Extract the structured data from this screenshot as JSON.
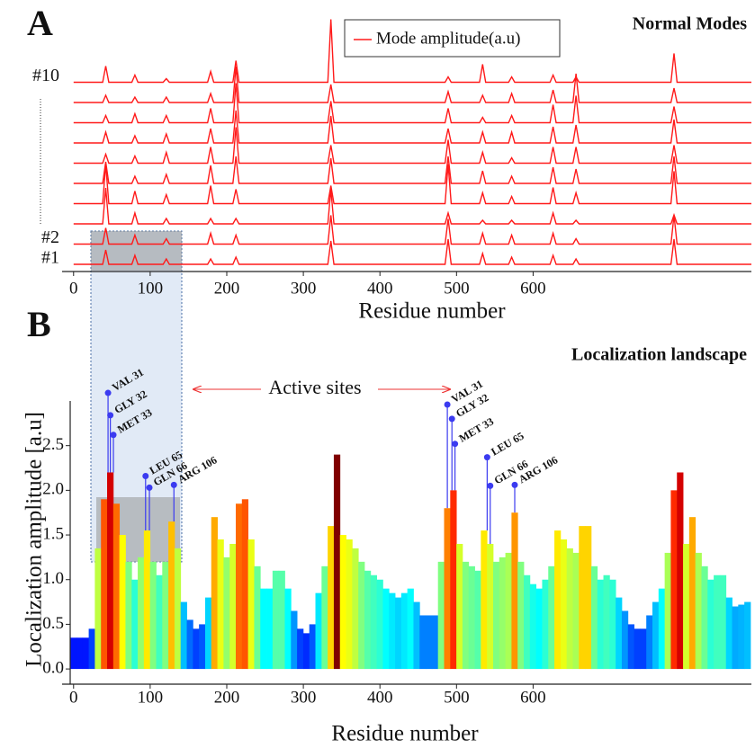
{
  "chart_data": [
    {
      "type": "line",
      "panel_label": "A",
      "title": "Normal Modes",
      "xlabel": "Residue number",
      "legend": "Mode amplitude(a.u)",
      "color": "#ff1a1a",
      "xlim": [
        -15,
        885
      ],
      "xticks": [
        0,
        100,
        200,
        300,
        400,
        500,
        600
      ],
      "x": [
        0,
        38,
        42,
        46,
        76,
        80,
        84,
        117,
        121,
        125,
        175,
        179,
        183,
        208,
        212,
        216,
        332,
        336,
        340,
        485,
        489,
        493,
        530,
        534,
        538,
        568,
        572,
        576,
        622,
        626,
        630,
        652,
        656,
        660,
        780,
        784,
        788,
        885
      ],
      "series": [
        {
          "name": "#1",
          "values": [
            0,
            0,
            0.8,
            0,
            0,
            0.5,
            0,
            0,
            0.3,
            0,
            0,
            0.3,
            0,
            0,
            0.4,
            0,
            0,
            1.3,
            0,
            0,
            1.4,
            0,
            0,
            0.6,
            0,
            0,
            0.4,
            0,
            0,
            0.5,
            0,
            0,
            0.3,
            0,
            0,
            1.4,
            0,
            0
          ]
        },
        {
          "name": "#2",
          "values": [
            0,
            0,
            0.9,
            0,
            0,
            0.5,
            0,
            0,
            0.3,
            0,
            0,
            0.6,
            0,
            0,
            0.5,
            0,
            0,
            1.6,
            0,
            0,
            1.4,
            0,
            0,
            0.6,
            0,
            0,
            0.5,
            0,
            0,
            0.6,
            0,
            0,
            0.3,
            0,
            0,
            1.6,
            0,
            0
          ]
        },
        {
          "values": [
            0,
            0,
            2.0,
            0,
            0,
            0.6,
            0,
            0,
            0.3,
            0,
            0,
            0.3,
            0,
            0,
            0.3,
            0,
            0,
            1.9,
            0,
            0,
            0.6,
            0,
            0,
            0.2,
            0,
            0,
            0.2,
            0,
            0,
            0.6,
            0,
            0,
            0.2,
            0,
            0,
            0.5,
            0,
            0
          ]
        },
        {
          "values": [
            0,
            0,
            2.2,
            0,
            0,
            0.7,
            0,
            0,
            0.5,
            0,
            0,
            1.0,
            0,
            0,
            0.8,
            0,
            0,
            1.0,
            0,
            0,
            2.2,
            0,
            0,
            0.6,
            0,
            0,
            0.4,
            0,
            0,
            0.9,
            0,
            0,
            0.6,
            0,
            0,
            1.8,
            0,
            0
          ]
        },
        {
          "values": [
            0,
            0,
            1.2,
            0,
            0,
            0.4,
            0,
            0,
            0.5,
            0,
            0,
            1.0,
            0,
            0,
            1.5,
            0,
            0,
            1.4,
            0,
            0,
            1.5,
            0,
            0,
            0.7,
            0,
            0,
            0.4,
            0,
            0,
            0.9,
            0,
            0,
            0.8,
            0,
            0,
            1.5,
            0,
            0
          ]
        },
        {
          "values": [
            0,
            0,
            0.5,
            0,
            0,
            0.4,
            0,
            0,
            0.6,
            0,
            0,
            0.9,
            0,
            0,
            2.0,
            0,
            0,
            1.0,
            0,
            0,
            1.3,
            0,
            0,
            0.6,
            0,
            0,
            0.3,
            0,
            0,
            0.9,
            0,
            0,
            0.9,
            0,
            0,
            1.0,
            0,
            0
          ]
        },
        {
          "values": [
            0,
            0,
            0.6,
            0,
            0,
            0.4,
            0,
            0,
            0.5,
            0,
            0,
            0.8,
            0,
            0,
            1.8,
            0,
            0,
            1.5,
            0,
            0,
            0.8,
            0,
            0,
            0.6,
            0,
            0,
            0.6,
            0,
            0,
            0.9,
            0,
            0,
            1.0,
            0,
            0,
            1.3,
            0,
            0
          ]
        },
        {
          "values": [
            0,
            0,
            0.4,
            0,
            0,
            0.5,
            0,
            0,
            0.4,
            0,
            0,
            0.8,
            0,
            0,
            2.2,
            0,
            0,
            1.2,
            0,
            0,
            0.8,
            0,
            0,
            0.3,
            0,
            0,
            0.4,
            0,
            0,
            1.0,
            0,
            0,
            1.5,
            0,
            0,
            0.9,
            0,
            0
          ]
        },
        {
          "values": [
            0,
            0,
            0.4,
            0,
            0,
            0.3,
            0,
            0,
            0.3,
            0,
            0,
            0.5,
            0,
            0,
            2.0,
            0,
            0,
            1.0,
            0,
            0,
            0.6,
            0,
            0,
            0.4,
            0,
            0,
            0.5,
            0,
            0,
            0.7,
            0,
            0,
            1.6,
            0,
            0,
            0.8,
            0,
            0
          ]
        },
        {
          "name": "#10",
          "values": [
            0,
            0,
            0.9,
            0,
            0,
            0.4,
            0,
            0,
            0.2,
            0,
            0,
            0.6,
            0,
            0,
            1.2,
            0,
            0,
            3.5,
            0,
            0,
            0.3,
            0,
            0,
            1.0,
            0,
            0,
            0.3,
            0,
            0,
            0.4,
            0,
            0,
            0.3,
            0,
            0,
            1.6,
            0,
            0
          ]
        }
      ]
    },
    {
      "type": "bar",
      "panel_label": "B",
      "title": "Localization landscape",
      "xlabel": "Residue number",
      "ylabel": "Localization amplitude [a.u]",
      "colormap": "jet",
      "annotation": "Active sites",
      "xlim": [
        -15,
        885
      ],
      "xticks": [
        0,
        100,
        200,
        300,
        400,
        500,
        600
      ],
      "ylim": [
        -0.15,
        3.0
      ],
      "yticks": [
        {
          "value": 0,
          "label": "0.0"
        },
        0.5,
        {
          "value": 1,
          "label": "1.0"
        },
        1.5,
        {
          "value": 2,
          "label": "2.0"
        },
        2.5
      ],
      "x": [
        0,
        8,
        16,
        24,
        32,
        40,
        48,
        56,
        64,
        72,
        80,
        88,
        96,
        104,
        112,
        120,
        128,
        136,
        144,
        152,
        160,
        168,
        176,
        184,
        192,
        200,
        208,
        216,
        224,
        232,
        240,
        248,
        256,
        264,
        272,
        280,
        288,
        296,
        304,
        312,
        320,
        328,
        336,
        344,
        352,
        360,
        368,
        376,
        384,
        392,
        400,
        408,
        416,
        424,
        432,
        440,
        448,
        456,
        464,
        472,
        480,
        488,
        496,
        504,
        512,
        520,
        528,
        536,
        544,
        552,
        560,
        568,
        576,
        584,
        592,
        600,
        608,
        616,
        624,
        632,
        640,
        648,
        656,
        664,
        672,
        680,
        688,
        696,
        704,
        712,
        720,
        728,
        736,
        744,
        752,
        760,
        768,
        776,
        784,
        792,
        800,
        808,
        816,
        824,
        832,
        840,
        848,
        856,
        864,
        872,
        880
      ],
      "values": [
        0.35,
        0.35,
        0.35,
        0.45,
        1.35,
        1.9,
        2.2,
        1.85,
        1.5,
        1.2,
        1.0,
        1.25,
        1.55,
        1.2,
        1.05,
        1.2,
        1.65,
        1.35,
        0.75,
        0.55,
        0.45,
        0.5,
        0.8,
        1.7,
        1.45,
        1.25,
        1.4,
        1.85,
        1.9,
        1.45,
        1.15,
        0.9,
        0.9,
        1.1,
        1.1,
        0.9,
        0.65,
        0.45,
        0.4,
        0.5,
        0.85,
        1.15,
        1.6,
        2.4,
        1.5,
        1.45,
        1.35,
        1.2,
        1.1,
        1.05,
        1.0,
        0.9,
        0.85,
        0.8,
        0.85,
        0.9,
        0.75,
        0.6,
        0.6,
        0.6,
        1.2,
        1.8,
        2.0,
        1.4,
        1.2,
        1.15,
        1.1,
        1.55,
        1.4,
        1.2,
        1.25,
        1.3,
        1.75,
        1.2,
        1.05,
        0.95,
        0.9,
        1.0,
        1.15,
        1.55,
        1.45,
        1.35,
        1.3,
        1.6,
        1.6,
        1.15,
        1.0,
        1.05,
        1.0,
        0.8,
        0.65,
        0.5,
        0.45,
        0.45,
        0.6,
        0.75,
        0.9,
        1.3,
        2.0,
        2.2,
        1.4,
        1.7,
        1.3,
        1.15,
        1.0,
        1.05,
        1.05,
        0.8,
        0.7,
        0.72,
        0.75
      ],
      "markers": {
        "color": "#3b3bf0",
        "points": [
          {
            "label": "VAL 31",
            "x": 45,
            "y": 3.09
          },
          {
            "label": "GLY 32",
            "x": 48,
            "y": 2.84
          },
          {
            "label": "MET 33",
            "x": 52,
            "y": 2.62
          },
          {
            "label": "LEU 65",
            "x": 94,
            "y": 2.16
          },
          {
            "label": "GLN 66",
            "x": 99,
            "y": 2.03
          },
          {
            "label": "ARG 106",
            "x": 131,
            "y": 2.06
          },
          {
            "label": "VAL 31",
            "x": 488,
            "y": 2.96
          },
          {
            "label": "GLY 32",
            "x": 494,
            "y": 2.8
          },
          {
            "label": "MET 33",
            "x": 498,
            "y": 2.52
          },
          {
            "label": "LEU 65",
            "x": 540,
            "y": 2.37
          },
          {
            "label": "GLN 66",
            "x": 544,
            "y": 2.05
          },
          {
            "label": "ARG 106",
            "x": 576,
            "y": 2.06
          }
        ]
      }
    }
  ]
}
